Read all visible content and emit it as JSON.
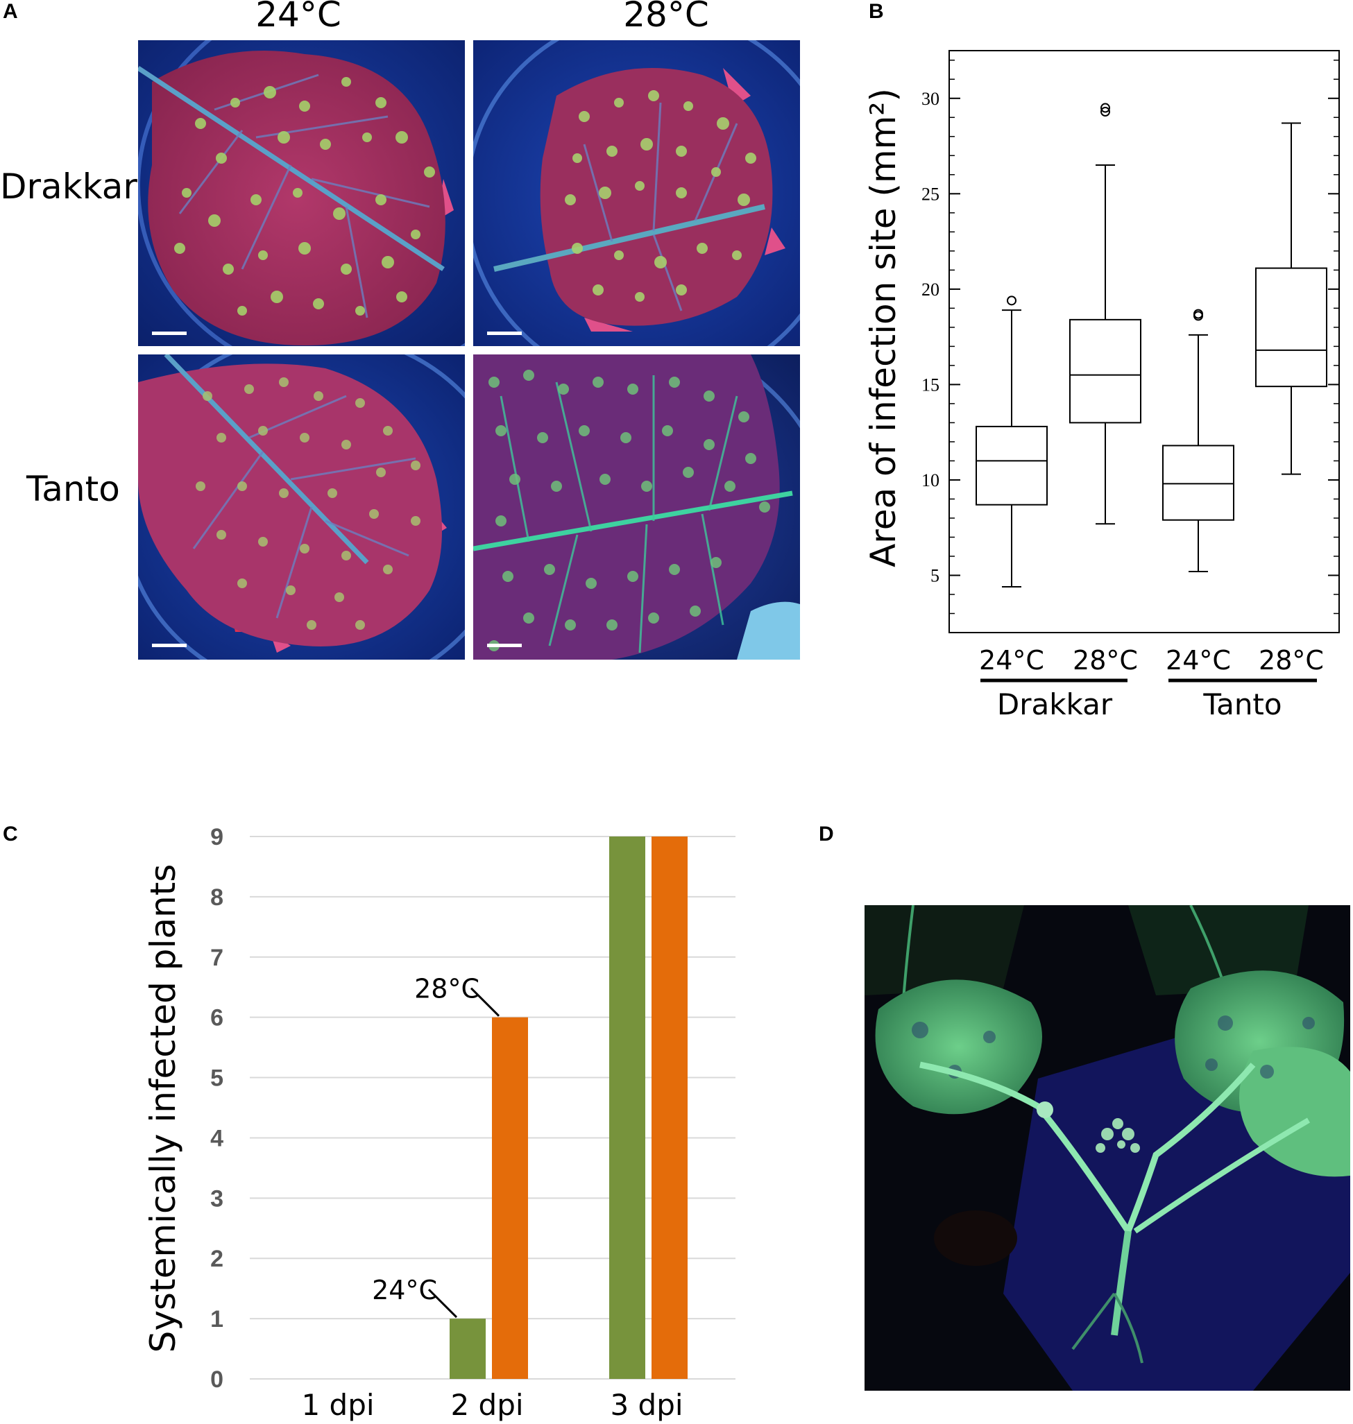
{
  "panelA": {
    "letter": "A",
    "columns": [
      "24°C",
      "28°C"
    ],
    "rows": [
      "Drakkar",
      "Tanto"
    ]
  },
  "panelB": {
    "letter": "B"
  },
  "panelC": {
    "letter": "C"
  },
  "panelD": {
    "letter": "D"
  },
  "colors": {
    "bar_24": "#77933c",
    "bar_28": "#e46c0a",
    "grid": "#d9d9d9",
    "axis_text_c": "#595959"
  },
  "chart_data": [
    {
      "type": "box",
      "panel": "B",
      "ylabel": "Area of infection site (mm²)",
      "ylim": [
        2,
        32.5
      ],
      "yticks": [
        5,
        10,
        15,
        20,
        25,
        30
      ],
      "groups": [
        {
          "genotype": "Drakkar",
          "temperature": "24°C",
          "min": 4.4,
          "q1": 8.7,
          "median": 11.0,
          "q3": 12.8,
          "max": 18.9,
          "outliers": [
            19.4
          ]
        },
        {
          "genotype": "Drakkar",
          "temperature": "28°C",
          "min": 7.7,
          "q1": 13.0,
          "median": 15.5,
          "q3": 18.4,
          "max": 26.5,
          "outliers": [
            29.3,
            29.5
          ]
        },
        {
          "genotype": "Tanto",
          "temperature": "24°C",
          "min": 5.2,
          "q1": 7.9,
          "median": 9.8,
          "q3": 11.8,
          "max": 17.6,
          "outliers": [
            18.6,
            18.7
          ]
        },
        {
          "genotype": "Tanto",
          "temperature": "28°C",
          "min": 10.3,
          "q1": 14.9,
          "median": 16.8,
          "q3": 21.1,
          "max": 28.7,
          "outliers": []
        }
      ],
      "genotype_labels": [
        "Drakkar",
        "Tanto"
      ],
      "temperature_labels": [
        "24°C",
        "28°C",
        "24°C",
        "28°C"
      ]
    },
    {
      "type": "bar",
      "panel": "C",
      "ylabel": "Systemically infected plants",
      "categories": [
        "1 dpi",
        "2 dpi",
        "3 dpi"
      ],
      "series": [
        {
          "name": "24°C",
          "values": [
            0,
            1,
            9
          ]
        },
        {
          "name": "28°C",
          "values": [
            0,
            6,
            9
          ]
        }
      ],
      "ylim": [
        0,
        9
      ],
      "yticks": [
        0,
        1,
        2,
        3,
        4,
        5,
        6,
        7,
        8,
        9
      ],
      "grid": true,
      "annotations": [
        {
          "text": "24°C",
          "series": "24°C",
          "category": "2 dpi"
        },
        {
          "text": "28°C",
          "series": "28°C",
          "category": "2 dpi"
        }
      ]
    }
  ]
}
